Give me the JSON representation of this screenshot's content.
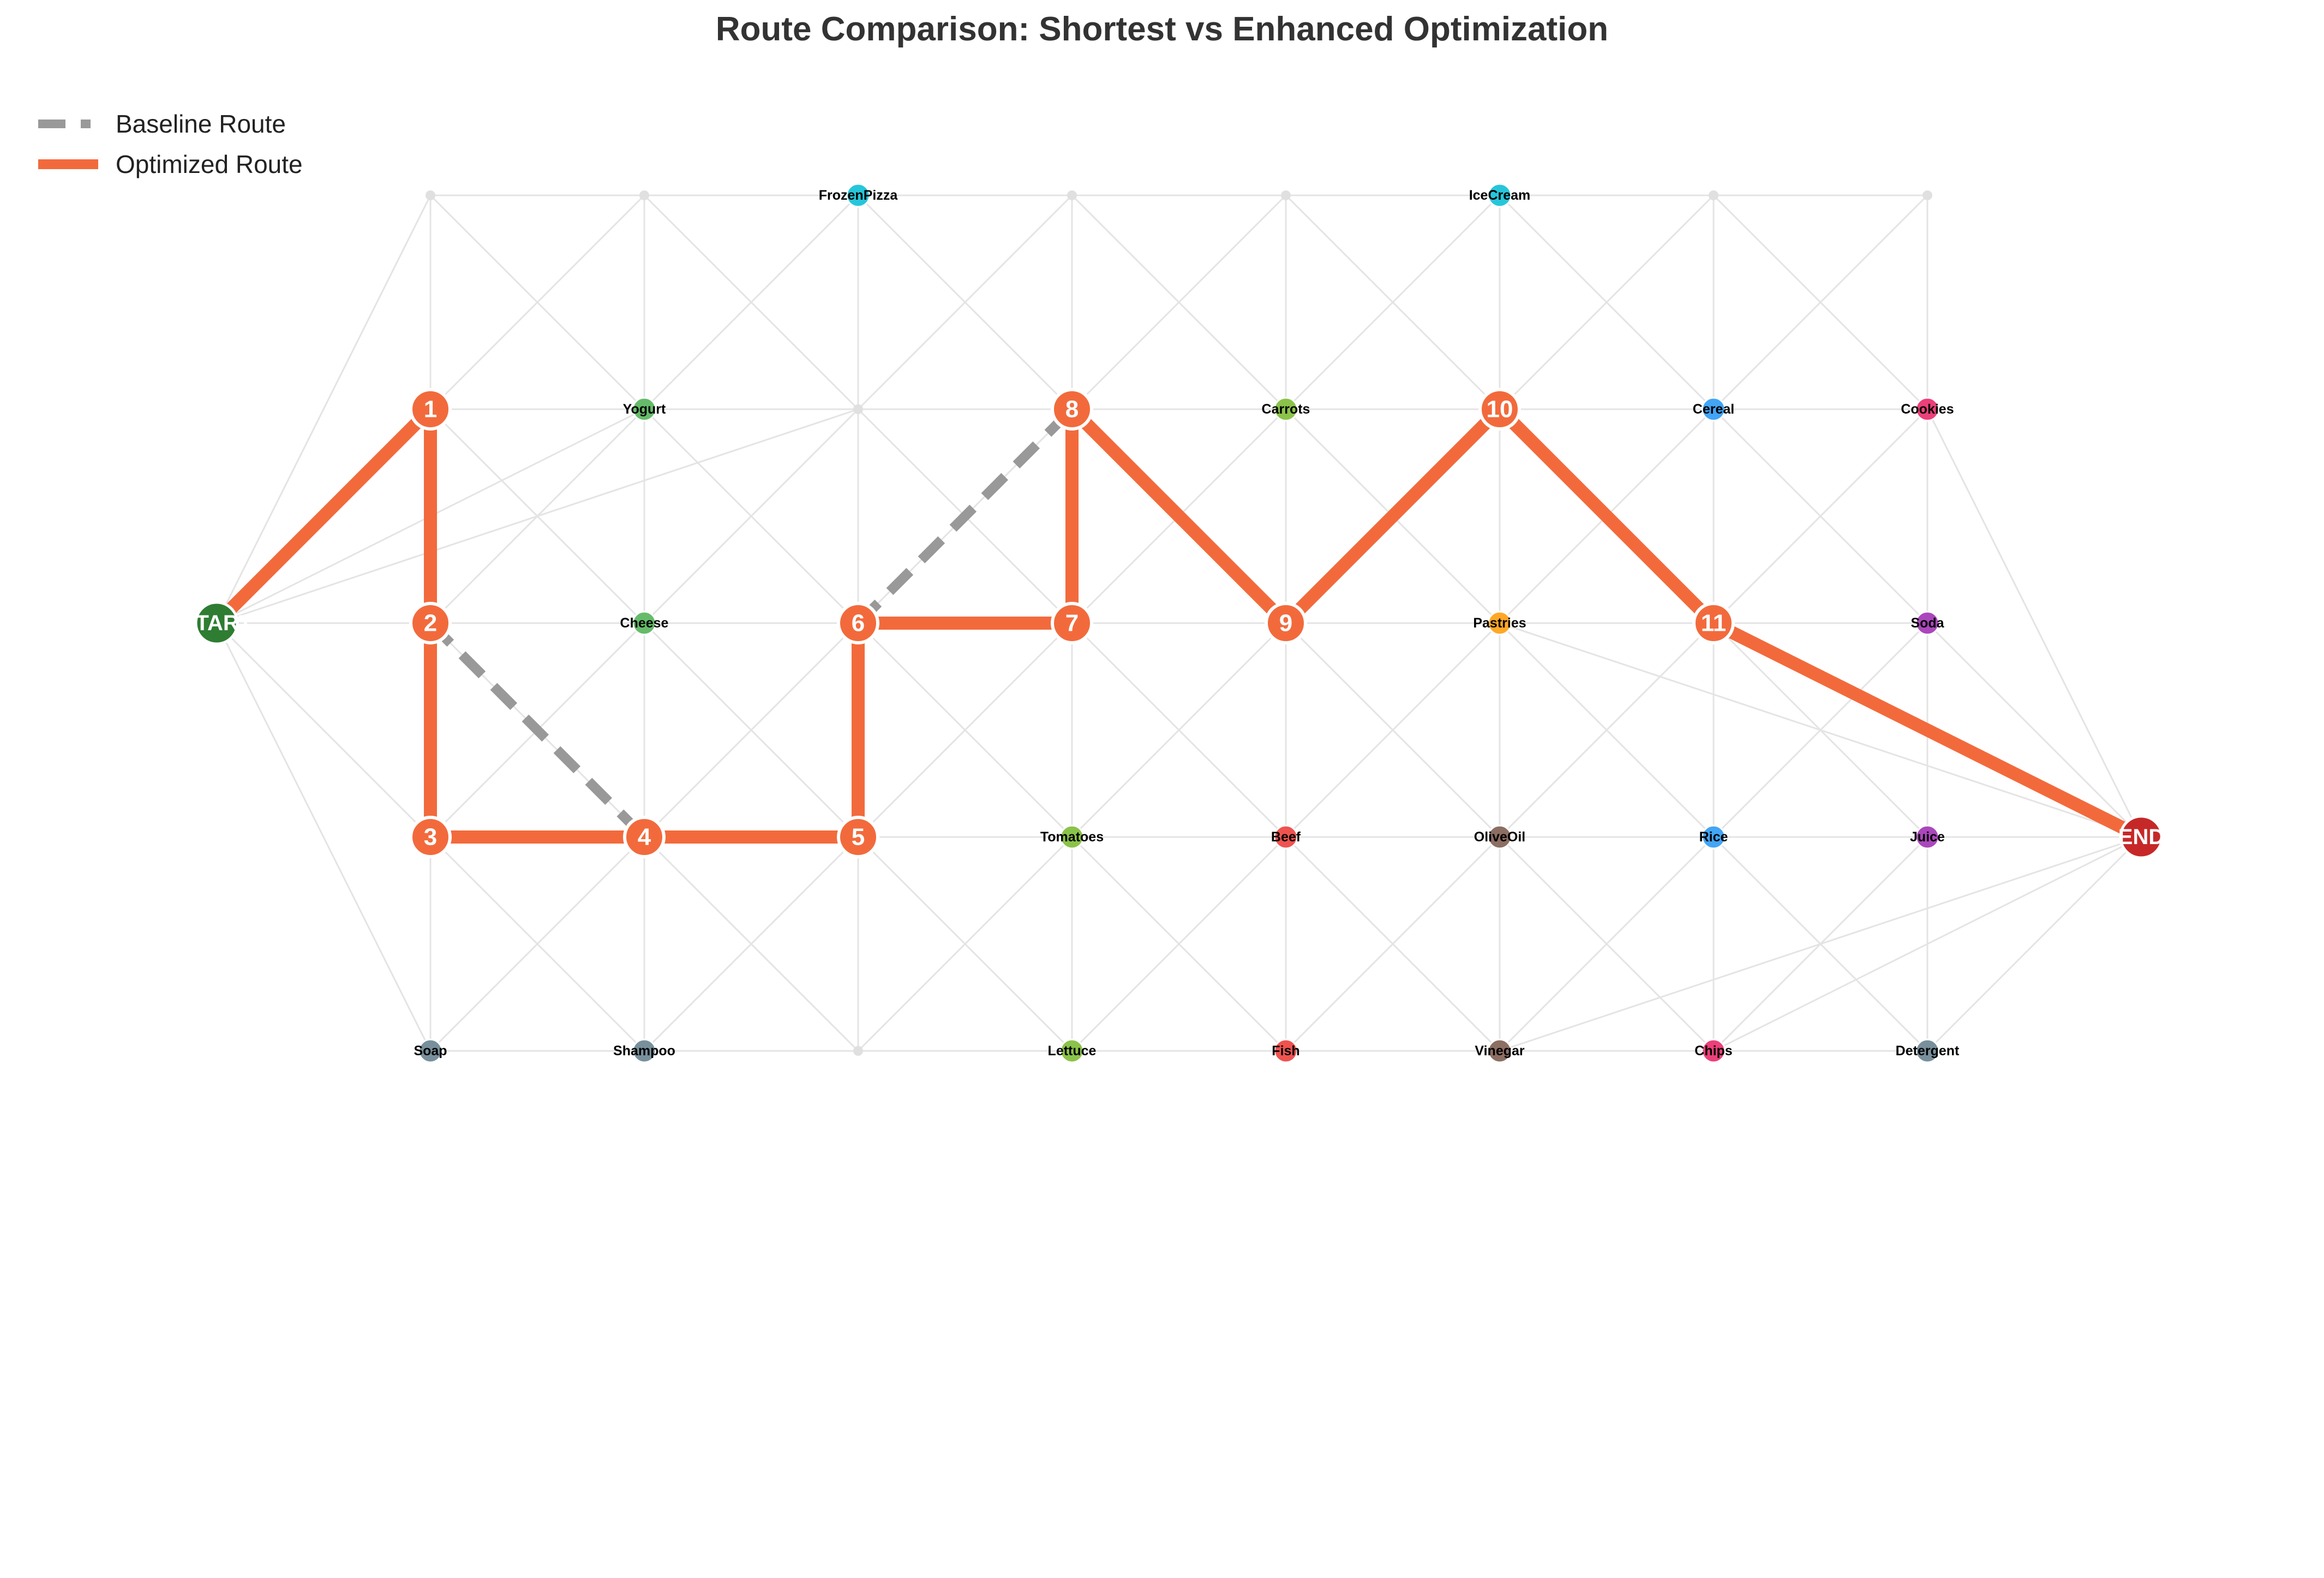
{
  "title": "Route Comparison: Shortest vs Enhanced Optimization",
  "legend": {
    "baseline_label": "Baseline Route",
    "optimized_label": "Optimized Route"
  },
  "colors": {
    "baseline": "#999999",
    "optimized": "#f26a3c",
    "start": "#2e7d32",
    "end": "#c62828",
    "edge": "#e4e4e4",
    "dairy": "#66bb6a",
    "produce": "#8bc34a",
    "frozen": "#26c6da",
    "bakery": "#ffa726",
    "meat": "#ef5350",
    "pantry": "#8d6e63",
    "grains": "#42a5f5",
    "snacks": "#ec407a",
    "beverages": "#ab47bc",
    "household": "#78909c",
    "empty": "#e0e0e0"
  },
  "terminals": {
    "start": {
      "label": "START",
      "col": 0,
      "row": 2
    },
    "end": {
      "label": "END",
      "col": 9,
      "row": 3
    }
  },
  "items": [
    {
      "label": "FrozenPizza",
      "col": 3,
      "row": 0,
      "category": "frozen"
    },
    {
      "label": "IceCream",
      "col": 6,
      "row": 0,
      "category": "frozen"
    },
    {
      "label": "Yogurt",
      "col": 2,
      "row": 1,
      "category": "dairy"
    },
    {
      "label": "Carrots",
      "col": 5,
      "row": 1,
      "category": "produce"
    },
    {
      "label": "Cereal",
      "col": 7,
      "row": 1,
      "category": "grains"
    },
    {
      "label": "Cookies",
      "col": 8,
      "row": 1,
      "category": "snacks"
    },
    {
      "label": "Cheese",
      "col": 2,
      "row": 2,
      "category": "dairy"
    },
    {
      "label": "Pastries",
      "col": 6,
      "row": 2,
      "category": "bakery"
    },
    {
      "label": "Soda",
      "col": 8,
      "row": 2,
      "category": "beverages"
    },
    {
      "label": "Tomatoes",
      "col": 4,
      "row": 3,
      "category": "produce"
    },
    {
      "label": "Beef",
      "col": 5,
      "row": 3,
      "category": "meat"
    },
    {
      "label": "OliveOil",
      "col": 6,
      "row": 3,
      "category": "pantry"
    },
    {
      "label": "Rice",
      "col": 7,
      "row": 3,
      "category": "grains"
    },
    {
      "label": "Juice",
      "col": 8,
      "row": 3,
      "category": "beverages"
    },
    {
      "label": "Soap",
      "col": 1,
      "row": 4,
      "category": "household"
    },
    {
      "label": "Shampoo",
      "col": 2,
      "row": 4,
      "category": "household"
    },
    {
      "label": "Lettuce",
      "col": 4,
      "row": 4,
      "category": "produce"
    },
    {
      "label": "Fish",
      "col": 5,
      "row": 4,
      "category": "meat"
    },
    {
      "label": "Vinegar",
      "col": 6,
      "row": 4,
      "category": "pantry"
    },
    {
      "label": "Chips",
      "col": 7,
      "row": 4,
      "category": "snacks"
    },
    {
      "label": "Detergent",
      "col": 8,
      "row": 4,
      "category": "household"
    }
  ],
  "empty_nodes": [
    {
      "col": 1,
      "row": 0
    },
    {
      "col": 2,
      "row": 0
    },
    {
      "col": 4,
      "row": 0
    },
    {
      "col": 5,
      "row": 0
    },
    {
      "col": 7,
      "row": 0
    },
    {
      "col": 8,
      "row": 0
    },
    {
      "col": 3,
      "row": 1
    },
    {
      "col": 3,
      "row": 4
    }
  ],
  "optimized_stops": [
    {
      "step": "1",
      "col": 1,
      "row": 1
    },
    {
      "step": "2",
      "col": 1,
      "row": 2
    },
    {
      "step": "3",
      "col": 1,
      "row": 3
    },
    {
      "step": "4",
      "col": 2,
      "row": 3
    },
    {
      "step": "5",
      "col": 3,
      "row": 3
    },
    {
      "step": "6",
      "col": 3,
      "row": 2
    },
    {
      "step": "7",
      "col": 4,
      "row": 2
    },
    {
      "step": "8",
      "col": 4,
      "row": 1
    },
    {
      "step": "9",
      "col": 5,
      "row": 2
    },
    {
      "step": "10",
      "col": 6,
      "row": 1
    },
    {
      "step": "11",
      "col": 7,
      "row": 2
    }
  ],
  "baseline_segments": [
    {
      "from": [
        1,
        2
      ],
      "to": [
        2,
        3
      ]
    },
    {
      "from": [
        3,
        2
      ],
      "to": [
        4,
        1
      ]
    }
  ]
}
